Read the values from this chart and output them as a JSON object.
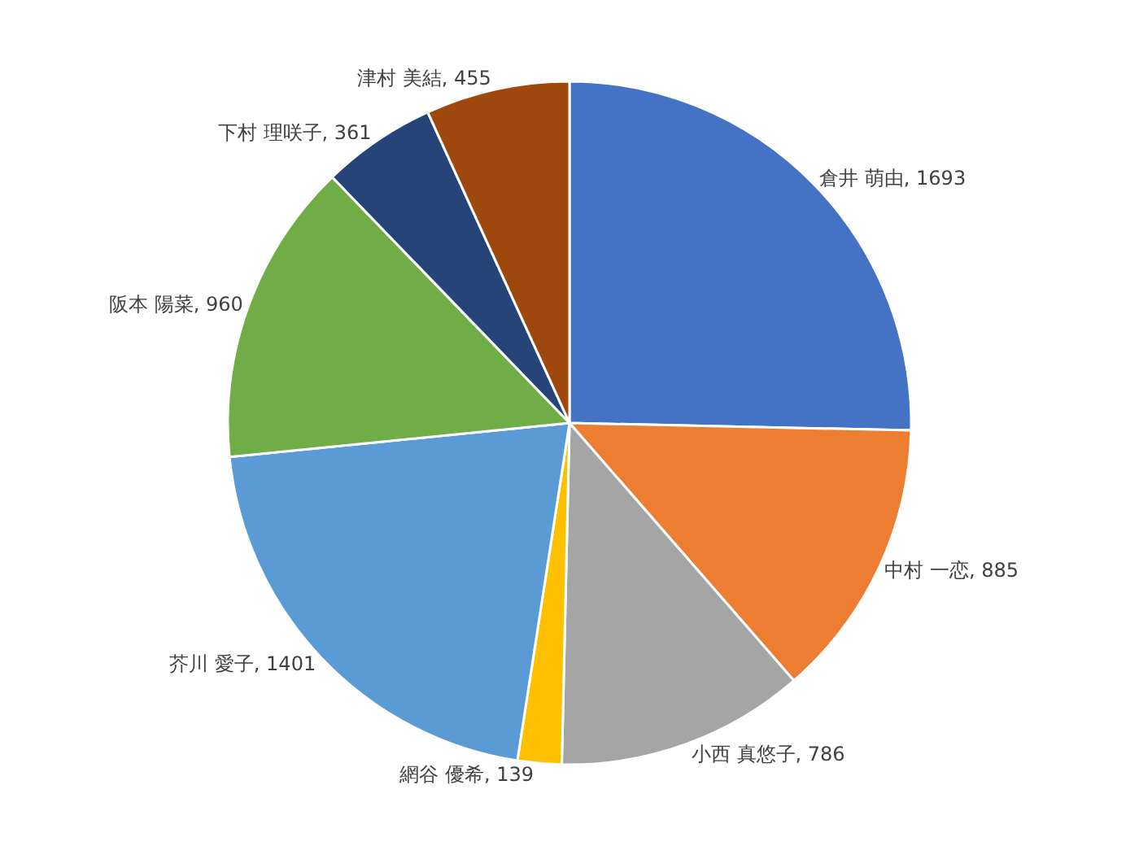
{
  "chart_data": {
    "type": "pie",
    "categories": [
      "倉井 萌由",
      "中村 一恋",
      "小西 真悠子",
      "網谷 優希",
      "芥川 愛子",
      "阪本 陽菜",
      "下村 理咲子",
      "津村 美結"
    ],
    "values": [
      1693,
      885,
      786,
      139,
      1401,
      960,
      361,
      455
    ],
    "value_labels": [
      "1693",
      "885",
      "786",
      "139",
      "1401",
      "960",
      "361",
      "455"
    ],
    "colors": [
      "#4472c4",
      "#ed7d31",
      "#a5a5a5",
      "#ffc000",
      "#5b9bd5",
      "#70ad47",
      "#264478",
      "#9e480e"
    ],
    "legend": false
  }
}
